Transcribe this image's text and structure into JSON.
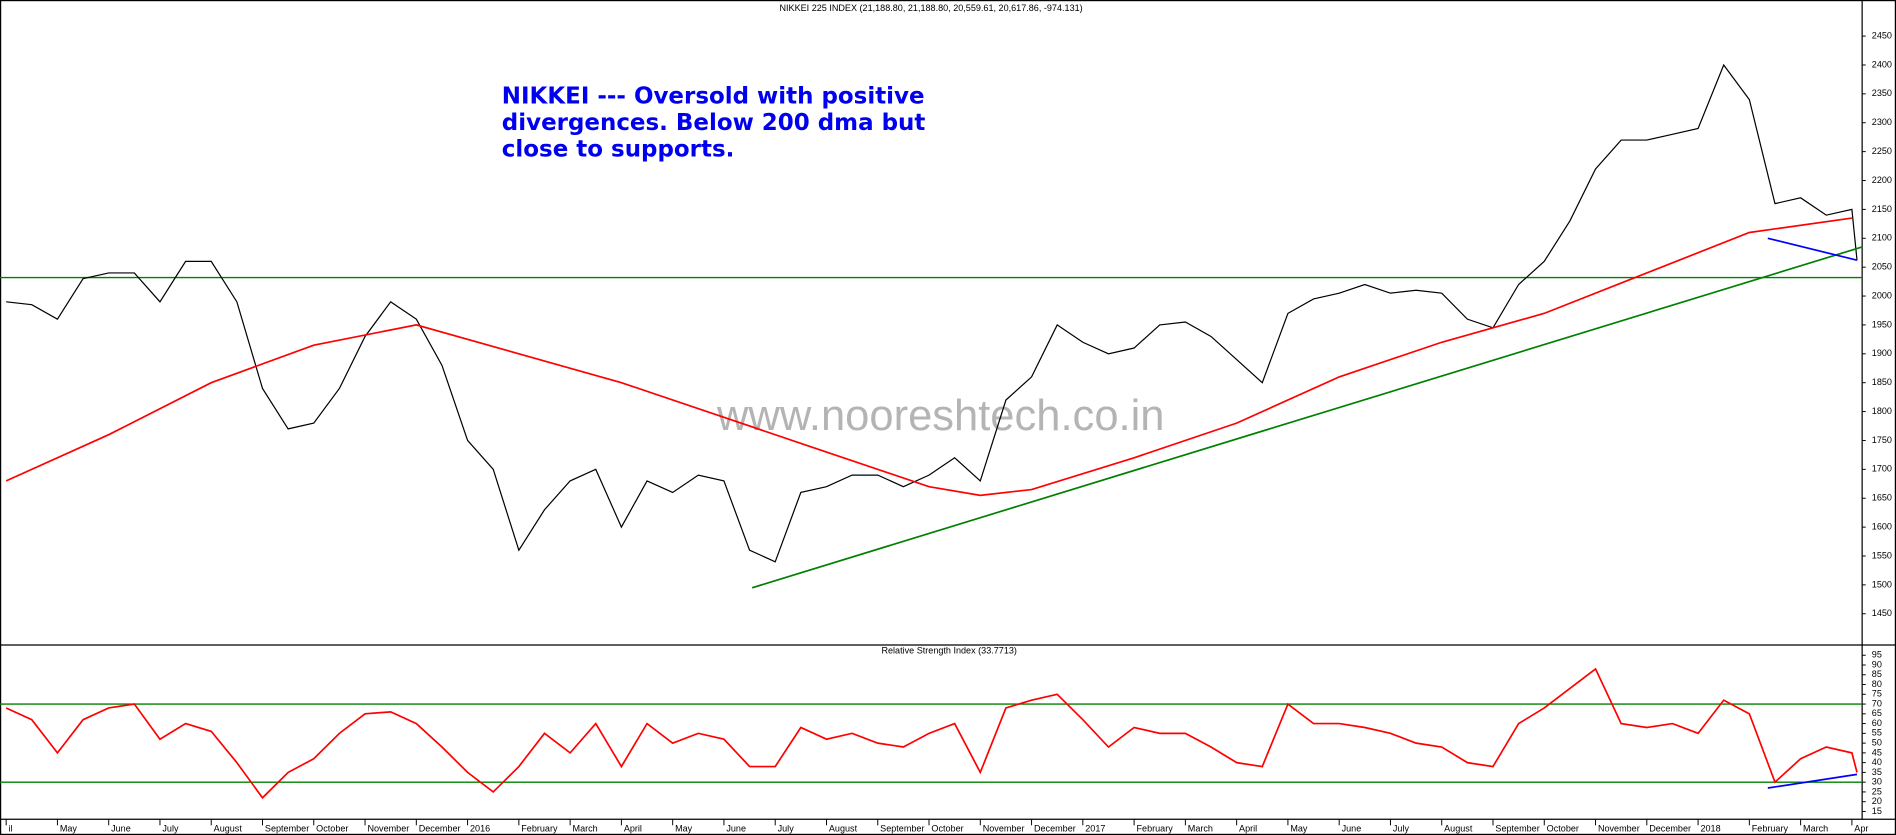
{
  "chart_data": [
    {
      "type": "line",
      "title": "NIKKEI 225 INDEX (21,188.80, 21,188.80, 20,559.61, 20,617.86, -974.131)",
      "annotation": [
        "NIKKEI --- Oversold with positive",
        "divergences. Below 200 dma but",
        "close to supports."
      ],
      "watermark": "www.nooreshtech.co.in",
      "x": [
        0,
        0.5,
        1,
        1.5,
        2,
        2.5,
        3,
        3.5,
        4,
        4.5,
        5,
        5.5,
        6,
        6.5,
        7,
        7.5,
        8,
        8.5,
        9,
        9.5,
        10,
        10.5,
        11,
        11.5,
        12,
        12.5,
        13,
        13.5,
        14,
        14.5,
        15,
        15.5,
        16,
        16.5,
        17,
        17.5,
        18,
        18.5,
        19,
        19.5,
        20,
        20.5,
        21,
        21.5,
        22,
        22.5,
        23,
        23.5,
        24,
        24.5,
        25,
        25.5,
        26,
        26.5,
        27,
        27.5,
        28,
        28.5,
        29,
        29.5,
        30,
        30.5,
        31,
        31.5,
        32,
        32.5,
        33,
        33.5,
        34,
        34.5,
        35,
        35.5,
        36,
        36.1
      ],
      "xlim": [
        -0.12,
        36.2
      ],
      "ylim": [
        1398,
        2502
      ],
      "yticks": [
        1450,
        1500,
        1550,
        1600,
        1650,
        1700,
        1750,
        1800,
        1850,
        1900,
        1950,
        2000,
        2050,
        2100,
        2150,
        2200,
        2250,
        2300,
        2350,
        2400,
        2450
      ],
      "series": [
        {
          "color": "#000000",
          "values": [
            1990,
            1985,
            1960,
            2030,
            2040,
            2040,
            1990,
            2060,
            2060,
            1990,
            1840,
            1770,
            1780,
            1840,
            1930,
            1990,
            1960,
            1880,
            1750,
            1700,
            1560,
            1630,
            1680,
            1700,
            1600,
            1680,
            1660,
            1690,
            1680,
            1560,
            1540,
            1660,
            1670,
            1690,
            1690,
            1670,
            1690,
            1720,
            1680,
            1820,
            1860,
            1950,
            1920,
            1900,
            1910,
            1950,
            1955,
            1930,
            1890,
            1850,
            1970,
            1995,
            2005,
            2020,
            2005,
            2010,
            2005,
            1960,
            1945,
            2020,
            2060,
            2130,
            2220,
            2270,
            2270,
            2280,
            2290,
            2400,
            2340,
            2160,
            2170,
            2140,
            2150,
            2062
          ]
        },
        {
          "color": "#ff0000",
          "x": [
            0,
            2,
            4,
            6,
            8,
            10,
            12,
            14,
            16,
            18,
            19,
            20,
            22,
            24,
            26,
            28,
            30,
            32,
            34,
            36
          ],
          "values": [
            1680,
            1760,
            1850,
            1915,
            1950,
            1900,
            1850,
            1790,
            1730,
            1670,
            1655,
            1665,
            1720,
            1780,
            1860,
            1920,
            1970,
            2040,
            2110,
            2135
          ]
        }
      ],
      "hlines": [
        {
          "value": 2032,
          "color": "#008000"
        }
      ],
      "trendlines": [
        {
          "x": [
            14.55,
            36.2
          ],
          "values": [
            1495,
            2085
          ],
          "color": "#008000"
        },
        {
          "x": [
            34.36,
            36.1
          ],
          "values": [
            2100,
            2062
          ],
          "color": "#0000ff"
        }
      ]
    },
    {
      "type": "line",
      "title": "Relative Strength Index (33.7713)",
      "x": [
        0,
        0.5,
        1,
        1.5,
        2,
        2.5,
        3,
        3.5,
        4,
        4.5,
        5,
        5.5,
        6,
        6.5,
        7,
        7.5,
        8,
        8.5,
        9,
        9.5,
        10,
        10.5,
        11,
        11.5,
        12,
        12.5,
        13,
        13.5,
        14,
        14.5,
        15,
        15.5,
        16,
        16.5,
        17,
        17.5,
        18,
        18.5,
        19,
        19.5,
        20,
        20.5,
        21,
        21.5,
        22,
        22.5,
        23,
        23.5,
        24,
        24.5,
        25,
        25.5,
        26,
        26.5,
        27,
        27.5,
        28,
        28.5,
        29,
        29.5,
        30,
        30.5,
        31,
        31.5,
        32,
        32.5,
        33,
        33.5,
        34,
        34.5,
        35,
        35.5,
        36,
        36.1
      ],
      "xlim": [
        -0.12,
        36.2
      ],
      "ylim": [
        11,
        99
      ],
      "yticks": [
        15,
        20,
        25,
        30,
        35,
        40,
        45,
        50,
        55,
        60,
        65,
        70,
        75,
        80,
        85,
        90,
        95
      ],
      "xticks": [
        {
          "value": 0,
          "label": "il"
        },
        {
          "value": 1,
          "label": "May"
        },
        {
          "value": 2,
          "label": "June"
        },
        {
          "value": 3,
          "label": "July"
        },
        {
          "value": 4,
          "label": "August"
        },
        {
          "value": 5,
          "label": "September"
        },
        {
          "value": 6,
          "label": "October"
        },
        {
          "value": 7,
          "label": "November"
        },
        {
          "value": 8,
          "label": "December"
        },
        {
          "value": 9,
          "label": "2016"
        },
        {
          "value": 10,
          "label": "February"
        },
        {
          "value": 11,
          "label": "March"
        },
        {
          "value": 12,
          "label": "April"
        },
        {
          "value": 13,
          "label": "May"
        },
        {
          "value": 14,
          "label": "June"
        },
        {
          "value": 15,
          "label": "July"
        },
        {
          "value": 16,
          "label": "August"
        },
        {
          "value": 17,
          "label": "September"
        },
        {
          "value": 18,
          "label": "October"
        },
        {
          "value": 19,
          "label": "November"
        },
        {
          "value": 20,
          "label": "December"
        },
        {
          "value": 21,
          "label": "2017"
        },
        {
          "value": 22,
          "label": "February"
        },
        {
          "value": 23,
          "label": "March"
        },
        {
          "value": 24,
          "label": "April"
        },
        {
          "value": 25,
          "label": "May"
        },
        {
          "value": 26,
          "label": "June"
        },
        {
          "value": 27,
          "label": "July"
        },
        {
          "value": 28,
          "label": "August"
        },
        {
          "value": 29,
          "label": "September"
        },
        {
          "value": 30,
          "label": "October"
        },
        {
          "value": 31,
          "label": "November"
        },
        {
          "value": 32,
          "label": "December"
        },
        {
          "value": 33,
          "label": "2018"
        },
        {
          "value": 34,
          "label": "February"
        },
        {
          "value": 35,
          "label": "March"
        },
        {
          "value": 36,
          "label": "Apr"
        }
      ],
      "series": [
        {
          "color": "#ff0000",
          "values": [
            68,
            62,
            45,
            62,
            68,
            70,
            52,
            60,
            56,
            40,
            22,
            35,
            42,
            55,
            65,
            66,
            60,
            48,
            35,
            25,
            38,
            55,
            45,
            60,
            38,
            60,
            50,
            55,
            52,
            38,
            38,
            58,
            52,
            55,
            50,
            48,
            55,
            60,
            35,
            68,
            72,
            75,
            62,
            48,
            58,
            55,
            55,
            48,
            40,
            38,
            70,
            60,
            60,
            58,
            55,
            50,
            48,
            40,
            38,
            60,
            68,
            78,
            88,
            60,
            58,
            60,
            55,
            72,
            65,
            30,
            42,
            48,
            45,
            35
          ]
        }
      ],
      "hlines": [
        {
          "value": 70,
          "color": "#008000"
        },
        {
          "value": 30,
          "color": "#008000"
        }
      ],
      "trendlines": [
        {
          "x": [
            34.36,
            36.1
          ],
          "values": [
            27,
            34
          ],
          "color": "#0000ff"
        }
      ]
    }
  ]
}
